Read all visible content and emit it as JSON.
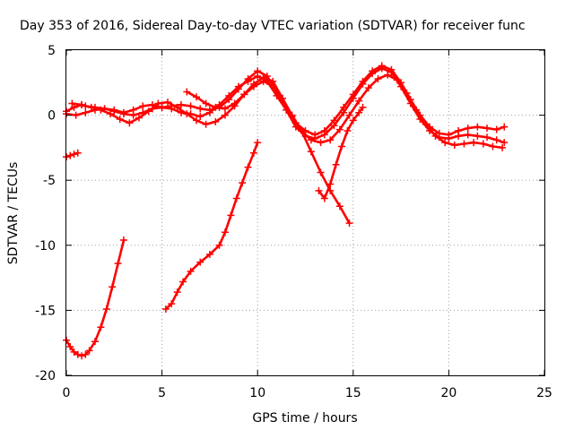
{
  "chart_data": {
    "type": "line",
    "title": "Day 353 of 2016, Sidereal Day-to-day VTEC variation (SDTVAR) for receiver func",
    "xlabel": "GPS time / hours",
    "ylabel": "SDTVAR / TECUs",
    "xlim": [
      0,
      25
    ],
    "ylim": [
      -20,
      5
    ],
    "xticks": [
      0,
      5,
      10,
      15,
      20,
      25
    ],
    "yticks": [
      5,
      0,
      -5,
      -10,
      -15,
      -20
    ],
    "grid": true,
    "legend": "none",
    "marker": "+",
    "series_color": "#ff0000",
    "series": [
      {
        "name": "track-1",
        "x": [
          0.0,
          0.4,
          0.8,
          1.0,
          1.5,
          2.0,
          2.5,
          3.0,
          3.5,
          4.0,
          4.5,
          5.0,
          5.5,
          6.0,
          6.5,
          7.0,
          7.5,
          8.0,
          8.5,
          9.0,
          9.5,
          10.0,
          10.5,
          11.0,
          11.5,
          12.0,
          12.5,
          13.0,
          13.5,
          14.0,
          14.5,
          15.0,
          15.5,
          16.0,
          16.5,
          17.0,
          17.5,
          18.0,
          18.5,
          19.0,
          19.5,
          20.0,
          20.5,
          21.0,
          21.5,
          22.0,
          22.5,
          22.9
        ],
        "y": [
          0.3,
          0.6,
          0.8,
          0.7,
          0.6,
          0.5,
          0.4,
          0.2,
          0.4,
          0.7,
          0.8,
          0.6,
          0.5,
          0.2,
          0.1,
          -0.1,
          0.2,
          0.8,
          1.5,
          2.2,
          2.6,
          3.0,
          2.6,
          1.5,
          0.4,
          -0.9,
          -1.6,
          -1.8,
          -1.5,
          -0.8,
          0.2,
          1.3,
          2.4,
          3.2,
          3.6,
          3.3,
          2.2,
          0.9,
          -0.3,
          -1.2,
          -1.7,
          -1.8,
          -1.6,
          -1.5,
          -1.6,
          -1.7,
          -1.9,
          -2.1
        ]
      },
      {
        "name": "track-2",
        "x": [
          0.0,
          0.5,
          1.0,
          1.5,
          2.0,
          2.5,
          3.0,
          3.5,
          4.0,
          4.5,
          5.0,
          5.5,
          6.0,
          6.5,
          7.0,
          7.5,
          8.0,
          8.5,
          9.0,
          9.5,
          10.0,
          10.5,
          11.0,
          11.5,
          12.0,
          12.5,
          13.0,
          13.5,
          14.0,
          14.5,
          15.0,
          15.5,
          16.0,
          16.5,
          17.0,
          17.5,
          18.0,
          18.5,
          19.0,
          19.5,
          20.0,
          20.5,
          21.0,
          21.5,
          22.0,
          22.5,
          22.9
        ],
        "y": [
          0.1,
          0.0,
          0.2,
          0.4,
          0.5,
          0.3,
          0.1,
          0.0,
          0.2,
          0.5,
          0.6,
          0.7,
          0.8,
          0.7,
          0.5,
          0.4,
          0.6,
          1.2,
          2.0,
          2.8,
          3.4,
          3.0,
          1.8,
          0.4,
          -0.6,
          -1.2,
          -1.5,
          -1.2,
          -0.4,
          0.6,
          1.6,
          2.6,
          3.4,
          3.8,
          3.5,
          2.5,
          1.2,
          0.0,
          -0.9,
          -1.4,
          -1.5,
          -1.2,
          -1.0,
          -0.9,
          -1.0,
          -1.1,
          -0.9
        ]
      },
      {
        "name": "track-3",
        "x": [
          0.3,
          0.8,
          1.3,
          1.8,
          2.3,
          2.8,
          3.3,
          3.8,
          4.3,
          4.8,
          5.3,
          5.8,
          6.3,
          6.8,
          7.3,
          7.8,
          8.3,
          8.8,
          9.3,
          9.8,
          10.3,
          10.8,
          11.3,
          11.8,
          12.3,
          12.8,
          13.3,
          13.8,
          14.3,
          14.8,
          15.3,
          15.8,
          16.3,
          16.8,
          17.3,
          17.8,
          18.3,
          18.8,
          19.3,
          19.8,
          20.3,
          20.8,
          21.3,
          21.8,
          22.3,
          22.8
        ],
        "y": [
          0.9,
          0.8,
          0.6,
          0.4,
          0.1,
          -0.3,
          -0.6,
          -0.2,
          0.3,
          0.9,
          1.0,
          0.6,
          0.1,
          -0.4,
          -0.7,
          -0.5,
          0.0,
          0.7,
          1.6,
          2.4,
          2.9,
          2.6,
          1.3,
          -0.1,
          -1.2,
          -1.9,
          -2.1,
          -1.9,
          -1.1,
          0.0,
          1.1,
          2.1,
          2.8,
          3.1,
          2.7,
          1.7,
          0.4,
          -0.7,
          -1.6,
          -2.1,
          -2.3,
          -2.2,
          -2.1,
          -2.2,
          -2.4,
          -2.5
        ]
      },
      {
        "name": "track-4",
        "x": [
          6.3,
          6.8,
          7.3,
          7.8,
          8.3,
          8.8,
          9.3,
          9.8,
          10.3,
          10.8,
          11.3,
          11.8,
          12.3,
          12.8,
          13.3,
          13.8,
          14.3,
          14.8
        ],
        "y": [
          1.8,
          1.4,
          0.9,
          0.6,
          0.5,
          0.9,
          1.6,
          2.2,
          2.6,
          2.3,
          1.3,
          0.0,
          -1.2,
          -2.8,
          -4.4,
          -5.8,
          -7.0,
          -8.3
        ]
      },
      {
        "name": "track-5",
        "x": [
          13.2,
          13.5,
          13.8,
          14.1,
          14.4,
          14.7,
          15.0,
          15.3,
          15.5
        ],
        "y": [
          -5.8,
          -6.4,
          -5.3,
          -3.8,
          -2.4,
          -1.2,
          -0.4,
          0.2,
          0.6
        ]
      },
      {
        "name": "track-6",
        "x": [
          0.0,
          0.2,
          0.4,
          0.6,
          0.8,
          1.0,
          1.2,
          1.5,
          1.8,
          2.1,
          2.4,
          2.7,
          3.0
        ],
        "y": [
          -17.3,
          -17.8,
          -18.2,
          -18.4,
          -18.5,
          -18.4,
          -18.1,
          -17.4,
          -16.3,
          -14.9,
          -13.2,
          -11.4,
          -9.6
        ]
      },
      {
        "name": "track-7",
        "x": [
          5.2,
          5.5,
          5.8,
          6.1,
          6.5,
          7.0,
          7.5,
          8.0,
          8.3,
          8.6,
          8.9,
          9.2,
          9.5,
          9.8,
          10.0
        ],
        "y": [
          -14.9,
          -14.5,
          -13.6,
          -12.8,
          -12.0,
          -11.3,
          -10.7,
          -10.0,
          -9.0,
          -7.7,
          -6.4,
          -5.2,
          -4.0,
          -2.9,
          -2.1
        ]
      },
      {
        "name": "track-8",
        "x": [
          0.0,
          0.2,
          0.4,
          0.6
        ],
        "y": [
          -3.2,
          -3.1,
          -3.0,
          -2.9
        ]
      }
    ]
  }
}
